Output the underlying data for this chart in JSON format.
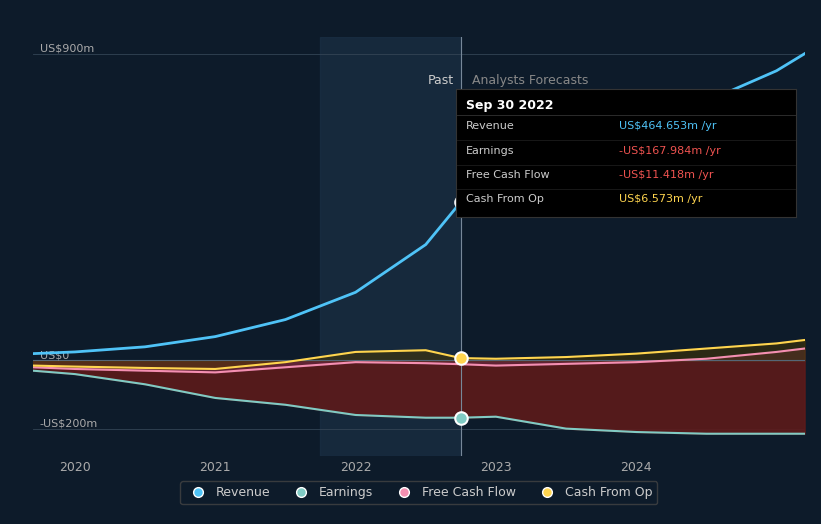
{
  "bg_color": "#0d1b2a",
  "plot_bg_color": "#0d1b2a",
  "past_shade_color": "#1a3045",
  "y_label_900": "US$900m",
  "y_label_0": "US$0",
  "y_label_neg200": "-US$200m",
  "x_ticks": [
    2020,
    2021,
    2022,
    2023,
    2024
  ],
  "past_label": "Past",
  "forecast_label": "Analysts Forecasts",
  "past_x": 2022.75,
  "tooltip_title": "Sep 30 2022",
  "tooltip_rows": [
    {
      "label": "Revenue",
      "value": "US$464.653m /yr",
      "color": "#4fc3f7"
    },
    {
      "label": "Earnings",
      "value": "-US$167.984m /yr",
      "color": "#ef5350"
    },
    {
      "label": "Free Cash Flow",
      "value": "-US$11.418m /yr",
      "color": "#ef5350"
    },
    {
      "label": "Cash From Op",
      "value": "US$6.573m /yr",
      "color": "#ffd54f"
    }
  ],
  "legend": [
    {
      "label": "Revenue",
      "color": "#4fc3f7"
    },
    {
      "label": "Earnings",
      "color": "#80cbc4"
    },
    {
      "label": "Free Cash Flow",
      "color": "#f48fb1"
    },
    {
      "label": "Cash From Op",
      "color": "#ffd54f"
    }
  ],
  "ylim": [
    -280,
    950
  ],
  "xlim": [
    2019.7,
    2025.2
  ],
  "revenue": {
    "x": [
      2019.7,
      2020.0,
      2020.5,
      2021.0,
      2021.5,
      2022.0,
      2022.5,
      2022.75,
      2023.0,
      2023.5,
      2024.0,
      2024.5,
      2025.0,
      2025.2
    ],
    "y": [
      20,
      25,
      40,
      70,
      120,
      200,
      340,
      465,
      520,
      600,
      680,
      760,
      850,
      900
    ]
  },
  "earnings": {
    "x": [
      2019.7,
      2020.0,
      2020.5,
      2021.0,
      2021.5,
      2022.0,
      2022.5,
      2022.75,
      2023.0,
      2023.5,
      2024.0,
      2024.5,
      2025.0,
      2025.2
    ],
    "y": [
      -30,
      -40,
      -70,
      -110,
      -130,
      -160,
      -168,
      -168,
      -165,
      -200,
      -210,
      -215,
      -215,
      -215
    ]
  },
  "free_cash_flow": {
    "x": [
      2019.7,
      2020.0,
      2020.5,
      2021.0,
      2021.5,
      2022.0,
      2022.5,
      2022.75,
      2023.0,
      2023.5,
      2024.0,
      2024.5,
      2025.0,
      2025.2
    ],
    "y": [
      -20,
      -25,
      -30,
      -35,
      -20,
      -5,
      -8,
      -11,
      -15,
      -10,
      -5,
      5,
      25,
      35
    ]
  },
  "cash_from_op": {
    "x": [
      2019.7,
      2020.0,
      2020.5,
      2021.0,
      2021.5,
      2022.0,
      2022.5,
      2022.75,
      2023.0,
      2023.5,
      2024.0,
      2024.5,
      2025.0,
      2025.2
    ],
    "y": [
      -15,
      -18,
      -22,
      -25,
      -5,
      25,
      30,
      7,
      5,
      10,
      20,
      35,
      50,
      60
    ]
  },
  "marker_x": 2022.75,
  "revenue_marker_y": 465,
  "earnings_marker_y": -168,
  "cash_from_op_marker_y": 7
}
